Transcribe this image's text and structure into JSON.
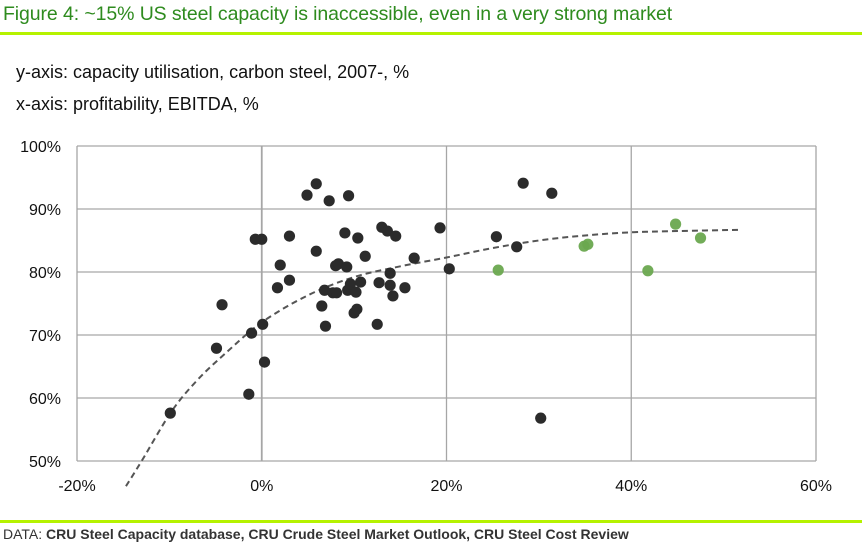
{
  "header": {
    "title": "Figure 4: ~15% US steel capacity is inaccessible, even in a very strong market",
    "y_axis_description": "y-axis: capacity utilisation, carbon steel, 2007-, %",
    "x_axis_description": "x-axis: profitability, EBITDA, %"
  },
  "footer": {
    "source_prefix": "DATA: ",
    "source_text": "CRU Steel Capacity database, CRU Crude Steel Market Outlook, CRU Steel Cost Review"
  },
  "colors": {
    "title": "#2e8b1e",
    "rule": "#b5f200",
    "dark_points": "#2b2b2b",
    "green_points": "#6aa84f",
    "trend": "#555555",
    "grid": "#a6a6a6"
  },
  "chart_data": {
    "type": "scatter",
    "title": "~15% US steel capacity is inaccessible, even in a very strong market",
    "xlabel": "profitability, EBITDA, %",
    "ylabel": "capacity utilisation, carbon steel, 2007-, %",
    "xlim": [
      -20,
      60
    ],
    "ylim": [
      50,
      100
    ],
    "x_ticks": [
      -20,
      0,
      20,
      40,
      60
    ],
    "x_tick_labels": [
      "-20%",
      "0%",
      "20%",
      "40%",
      "60%"
    ],
    "y_ticks": [
      50,
      60,
      70,
      80,
      90,
      100
    ],
    "y_tick_labels": [
      "50%",
      "60%",
      "70%",
      "80%",
      "90%",
      "100%"
    ],
    "grid": true,
    "legend": "none",
    "series": [
      {
        "name": "dark",
        "color": "#2b2b2b",
        "points": [
          [
            -9.9,
            57.6
          ],
          [
            -4.3,
            74.8
          ],
          [
            -4.9,
            67.9
          ],
          [
            -1.4,
            60.6
          ],
          [
            -1.1,
            70.3
          ],
          [
            0.1,
            71.7
          ],
          [
            0.3,
            65.7
          ],
          [
            -0.7,
            85.2
          ],
          [
            0.0,
            85.2
          ],
          [
            3.0,
            85.7
          ],
          [
            2.0,
            81.1
          ],
          [
            3.0,
            78.7
          ],
          [
            1.7,
            77.5
          ],
          [
            4.9,
            92.2
          ],
          [
            5.9,
            94.0
          ],
          [
            7.3,
            91.3
          ],
          [
            9.4,
            92.1
          ],
          [
            5.9,
            83.3
          ],
          [
            9.0,
            86.2
          ],
          [
            10.4,
            85.4
          ],
          [
            13.0,
            87.1
          ],
          [
            13.6,
            86.5
          ],
          [
            14.5,
            85.7
          ],
          [
            11.2,
            82.5
          ],
          [
            8.0,
            81.0
          ],
          [
            8.3,
            81.3
          ],
          [
            9.2,
            80.8
          ],
          [
            16.5,
            82.2
          ],
          [
            6.8,
            77.1
          ],
          [
            7.7,
            76.7
          ],
          [
            8.1,
            76.7
          ],
          [
            9.3,
            77.1
          ],
          [
            9.6,
            78.1
          ],
          [
            10.2,
            76.8
          ],
          [
            10.7,
            78.4
          ],
          [
            12.7,
            78.3
          ],
          [
            13.9,
            79.8
          ],
          [
            13.9,
            77.9
          ],
          [
            14.2,
            76.2
          ],
          [
            15.5,
            77.5
          ],
          [
            6.5,
            74.6
          ],
          [
            10.0,
            73.5
          ],
          [
            10.3,
            74.1
          ],
          [
            6.9,
            71.4
          ],
          [
            12.5,
            71.7
          ],
          [
            19.3,
            87.0
          ],
          [
            20.3,
            80.5
          ],
          [
            25.4,
            85.6
          ],
          [
            27.6,
            84.0
          ],
          [
            28.3,
            94.1
          ],
          [
            31.4,
            92.5
          ],
          [
            30.2,
            56.8
          ]
        ]
      },
      {
        "name": "green",
        "color": "#6aa84f",
        "points": [
          [
            25.6,
            80.3
          ],
          [
            34.9,
            84.1
          ],
          [
            35.3,
            84.4
          ],
          [
            41.8,
            80.2
          ],
          [
            44.8,
            87.6
          ],
          [
            47.5,
            85.4
          ]
        ]
      }
    ],
    "trendline": {
      "style": "dashed",
      "color": "#555555",
      "points": [
        [
          -14.7,
          46.0
        ],
        [
          -13.0,
          50.0
        ],
        [
          -9.8,
          57.8
        ],
        [
          -7.0,
          62.8
        ],
        [
          -4.0,
          67.0
        ],
        [
          0.0,
          72.0
        ],
        [
          5.0,
          76.3
        ],
        [
          10.0,
          79.2
        ],
        [
          15.0,
          80.9
        ],
        [
          20.0,
          82.3
        ],
        [
          25.0,
          83.8
        ],
        [
          30.0,
          85.0
        ],
        [
          35.0,
          85.8
        ],
        [
          40.0,
          86.3
        ],
        [
          45.0,
          86.5
        ],
        [
          51.8,
          86.7
        ]
      ]
    }
  }
}
